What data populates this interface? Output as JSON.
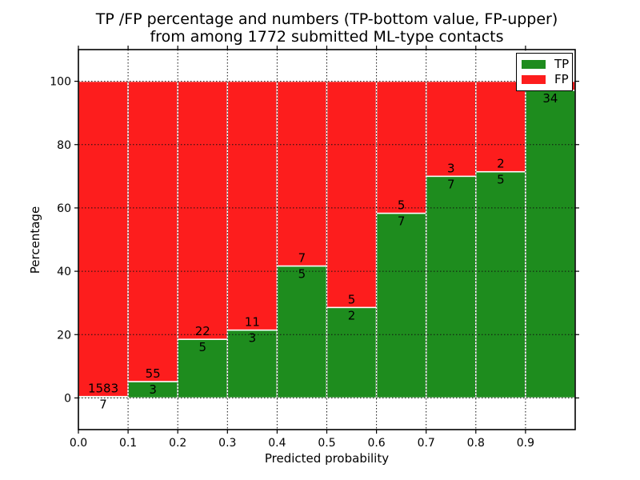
{
  "title": {
    "line1": "TP /FP percentage and numbers (TP-bottom value, FP-upper)",
    "line2": "from among 1772 submitted ML-type contacts"
  },
  "axes": {
    "xlabel": "Predicted probability",
    "ylabel": "Percentage",
    "xticks": [
      "0.0",
      "0.1",
      "0.2",
      "0.3",
      "0.4",
      "0.5",
      "0.6",
      "0.7",
      "0.8",
      "0.9"
    ],
    "yticks": [
      "0",
      "20",
      "40",
      "60",
      "80",
      "100"
    ]
  },
  "legend": [
    {
      "label": "TP",
      "color": "#1e8c1e"
    },
    {
      "label": "FP",
      "color": "#fd1d1d"
    }
  ],
  "chart_data": {
    "type": "bar",
    "stacked": true,
    "title": "TP /FP percentage and numbers (TP-bottom value, FP-upper) from among 1772 submitted ML-type contacts",
    "xlabel": "Predicted probability",
    "ylabel": "Percentage",
    "total_submitted": 1772,
    "xlim": [
      0,
      1.0
    ],
    "display_ylim": [
      -10,
      110
    ],
    "grid": "dotted, drawn above bars",
    "legend_position": "upper right",
    "series_colors": {
      "tp": "#1e8c1e",
      "fp": "#fd1d1d"
    },
    "bar_edge_color": "#ffffff",
    "bins": [
      {
        "range": [
          0.0,
          0.1
        ],
        "tp_count": 7,
        "fp_count": 1583,
        "tp_pct": 0.44
      },
      {
        "range": [
          0.1,
          0.2
        ],
        "tp_count": 3,
        "fp_count": 55,
        "tp_pct": 5.17
      },
      {
        "range": [
          0.2,
          0.3
        ],
        "tp_count": 5,
        "fp_count": 22,
        "tp_pct": 18.52
      },
      {
        "range": [
          0.3,
          0.4
        ],
        "tp_count": 3,
        "fp_count": 11,
        "tp_pct": 21.43
      },
      {
        "range": [
          0.4,
          0.5
        ],
        "tp_count": 5,
        "fp_count": 7,
        "tp_pct": 41.67
      },
      {
        "range": [
          0.5,
          0.6
        ],
        "tp_count": 2,
        "fp_count": 5,
        "tp_pct": 28.57
      },
      {
        "range": [
          0.6,
          0.7
        ],
        "tp_count": 7,
        "fp_count": 5,
        "tp_pct": 58.33
      },
      {
        "range": [
          0.7,
          0.8
        ],
        "tp_count": 7,
        "fp_count": 3,
        "tp_pct": 70.0
      },
      {
        "range": [
          0.8,
          0.9
        ],
        "tp_count": 5,
        "fp_count": 2,
        "tp_pct": 71.43
      },
      {
        "range": [
          0.9,
          1.0
        ],
        "tp_count": 34,
        "fp_count": null,
        "tp_pct": 97.14
      }
    ]
  }
}
